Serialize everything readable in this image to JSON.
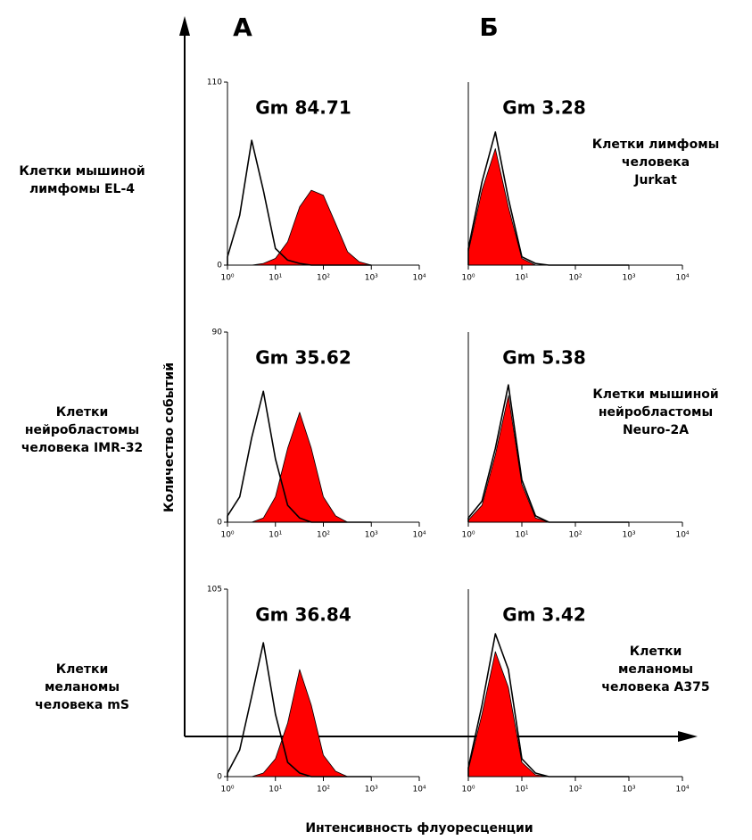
{
  "figure": {
    "column_labels": [
      "А",
      "Б"
    ],
    "y_label": "Количество событий",
    "x_label": "Интенсивность флуоресценции"
  },
  "chart_data": [
    {
      "type": "area",
      "title_lines": [
        "Клетки мышиной",
        "лимфомы EL-4"
      ],
      "annotation": "Gm 84.71",
      "log_x": true,
      "xlim": [
        1,
        10000
      ],
      "xticks": [
        {
          "value": 1,
          "label": "10⁰"
        },
        {
          "value": 10,
          "label": "10¹"
        },
        {
          "value": 100,
          "label": "10²"
        },
        {
          "value": 1000,
          "label": "10³"
        },
        {
          "value": 10000,
          "label": "10⁴"
        }
      ],
      "ylim": [
        0,
        110
      ],
      "yticks": [
        0,
        110
      ],
      "x": [
        1,
        1.8,
        3.2,
        5.6,
        10,
        18,
        32,
        56,
        100,
        180,
        320,
        560,
        1000
      ],
      "series": [
        {
          "color": "#ff0000",
          "filled": true,
          "values": [
            0,
            0,
            0,
            1,
            4,
            14,
            35,
            45,
            42,
            25,
            8,
            2,
            0
          ]
        },
        {
          "color": "#000000",
          "filled": false,
          "values": [
            5,
            30,
            75,
            45,
            10,
            3,
            1,
            0,
            0,
            0,
            0,
            0,
            0
          ]
        }
      ]
    },
    {
      "type": "area",
      "title_lines": [
        "Клетки лимфомы",
        "человека",
        "Jurkat"
      ],
      "annotation": "Gm 3.28",
      "log_x": true,
      "xlim": [
        1,
        10000
      ],
      "xticks": [
        {
          "value": 1,
          "label": "10⁰"
        },
        {
          "value": 10,
          "label": "10¹"
        },
        {
          "value": 100,
          "label": "10²"
        },
        {
          "value": 1000,
          "label": "10³"
        },
        {
          "value": 10000,
          "label": "10⁴"
        }
      ],
      "ylim": [
        0,
        110
      ],
      "x": [
        1,
        1.8,
        3.2,
        5.6,
        10,
        18,
        32,
        56,
        100,
        180,
        320,
        560,
        1000
      ],
      "series": [
        {
          "color": "#ff0000",
          "filled": true,
          "values": [
            8,
            45,
            70,
            35,
            4,
            0,
            0,
            0,
            0,
            0,
            0,
            0,
            0
          ]
        },
        {
          "color": "#000000",
          "filled": false,
          "values": [
            10,
            50,
            80,
            40,
            5,
            1,
            0,
            0,
            0,
            0,
            0,
            0,
            0
          ]
        }
      ]
    },
    {
      "type": "area",
      "title_lines": [
        "Клетки",
        "нейробластомы",
        "человека IMR-32"
      ],
      "annotation": "Gm 35.62",
      "log_x": true,
      "xlim": [
        1,
        10000
      ],
      "xticks": [
        {
          "value": 1,
          "label": "10⁰"
        },
        {
          "value": 10,
          "label": "10¹"
        },
        {
          "value": 100,
          "label": "10²"
        },
        {
          "value": 1000,
          "label": "10³"
        },
        {
          "value": 10000,
          "label": "10⁴"
        }
      ],
      "ylim": [
        0,
        90
      ],
      "yticks": [
        0,
        90
      ],
      "x": [
        1,
        1.8,
        3.2,
        5.6,
        10,
        18,
        32,
        56,
        100,
        180,
        320,
        560,
        1000
      ],
      "series": [
        {
          "color": "#ff0000",
          "filled": true,
          "values": [
            0,
            0,
            0,
            2,
            12,
            35,
            52,
            35,
            12,
            3,
            0,
            0,
            0
          ]
        },
        {
          "color": "#000000",
          "filled": false,
          "values": [
            3,
            12,
            40,
            62,
            30,
            8,
            2,
            0,
            0,
            0,
            0,
            0,
            0
          ]
        }
      ]
    },
    {
      "type": "area",
      "title_lines": [
        "Клетки мышиной",
        "нейробластомы",
        "Neuro-2A"
      ],
      "annotation": "Gm 5.38",
      "log_x": true,
      "xlim": [
        1,
        10000
      ],
      "xticks": [
        {
          "value": 1,
          "label": "10⁰"
        },
        {
          "value": 10,
          "label": "10¹"
        },
        {
          "value": 100,
          "label": "10²"
        },
        {
          "value": 1000,
          "label": "10³"
        },
        {
          "value": 10000,
          "label": "10⁴"
        }
      ],
      "ylim": [
        0,
        90
      ],
      "x": [
        1,
        1.8,
        3.2,
        5.6,
        10,
        18,
        32,
        56,
        100,
        180,
        320,
        560,
        1000
      ],
      "series": [
        {
          "color": "#ff0000",
          "filled": true,
          "values": [
            1,
            8,
            32,
            60,
            18,
            2,
            0,
            0,
            0,
            0,
            0,
            0,
            0
          ]
        },
        {
          "color": "#000000",
          "filled": false,
          "values": [
            2,
            10,
            35,
            65,
            20,
            3,
            0,
            0,
            0,
            0,
            0,
            0,
            0
          ]
        }
      ]
    },
    {
      "type": "area",
      "title_lines": [
        "Клетки",
        "меланомы",
        "человека mS"
      ],
      "annotation": "Gm 36.84",
      "log_x": true,
      "xlim": [
        1,
        10000
      ],
      "xticks": [
        {
          "value": 1,
          "label": "10⁰"
        },
        {
          "value": 10,
          "label": "10¹"
        },
        {
          "value": 100,
          "label": "10²"
        },
        {
          "value": 1000,
          "label": "10³"
        },
        {
          "value": 10000,
          "label": "10⁴"
        }
      ],
      "ylim": [
        0,
        105
      ],
      "yticks": [
        0,
        105
      ],
      "x": [
        1,
        1.8,
        3.2,
        5.6,
        10,
        18,
        32,
        56,
        100,
        180,
        320,
        560,
        1000
      ],
      "series": [
        {
          "color": "#ff0000",
          "filled": true,
          "values": [
            0,
            0,
            0,
            2,
            10,
            30,
            60,
            40,
            12,
            3,
            0,
            0,
            0
          ]
        },
        {
          "color": "#000000",
          "filled": false,
          "values": [
            2,
            15,
            45,
            75,
            35,
            8,
            2,
            0,
            0,
            0,
            0,
            0,
            0
          ]
        }
      ]
    },
    {
      "type": "area",
      "title_lines": [
        "Клетки",
        "меланомы",
        "человека A375"
      ],
      "annotation": "Gm 3.42",
      "log_x": true,
      "xlim": [
        1,
        10000
      ],
      "xticks": [
        {
          "value": 1,
          "label": "10⁰"
        },
        {
          "value": 10,
          "label": "10¹"
        },
        {
          "value": 100,
          "label": "10²"
        },
        {
          "value": 1000,
          "label": "10³"
        },
        {
          "value": 10000,
          "label": "10⁴"
        }
      ],
      "ylim": [
        0,
        105
      ],
      "x": [
        1,
        1.8,
        3.2,
        5.6,
        10,
        18,
        32,
        56,
        100,
        180,
        320,
        560,
        1000
      ],
      "series": [
        {
          "color": "#ff0000",
          "filled": true,
          "values": [
            4,
            35,
            70,
            50,
            8,
            1,
            0,
            0,
            0,
            0,
            0,
            0,
            0
          ]
        },
        {
          "color": "#000000",
          "filled": false,
          "values": [
            5,
            40,
            80,
            60,
            10,
            2,
            0,
            0,
            0,
            0,
            0,
            0,
            0
          ]
        }
      ]
    }
  ]
}
